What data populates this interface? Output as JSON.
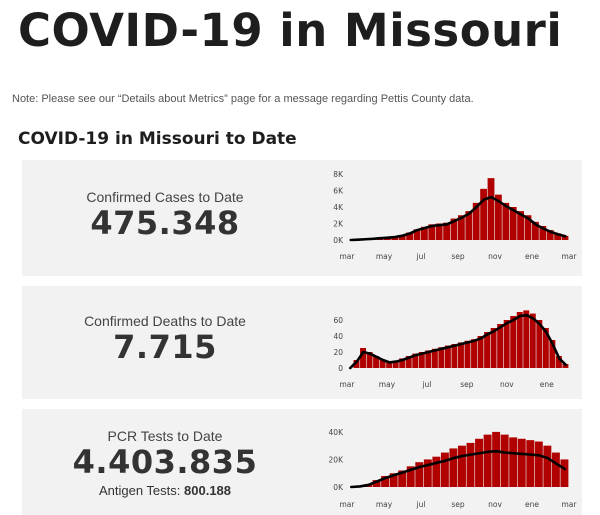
{
  "page": {
    "title": "COVID-19 in Missouri",
    "note": "Note: Please see our “Details about Metrics” page for a message regarding Pettis County data.",
    "section_title": "COVID-19 in Missouri to Date"
  },
  "colors": {
    "bar": "#b00000",
    "line": "#000000",
    "card_bg": "#f2f2f2"
  },
  "cards": [
    {
      "label": "Confirmed Cases to Date",
      "value": "475.348"
    },
    {
      "label": "Confirmed Deaths to Date",
      "value": "7.715"
    },
    {
      "label": "PCR Tests to Date",
      "value": "4.403.835",
      "sub_label": "Antigen Tests:",
      "sub_value": "800.188"
    }
  ],
  "chart_data": [
    {
      "type": "bar",
      "series": [
        {
          "name": "",
          "kind": "bar",
          "values": [
            0,
            50,
            100,
            150,
            250,
            300,
            400,
            600,
            900,
            1300,
            1600,
            1900,
            2000,
            2100,
            2600,
            3000,
            3500,
            4500,
            6200,
            7500,
            5500,
            4500,
            4000,
            3500,
            3000,
            2200,
            1700,
            1200,
            800,
            500
          ]
        },
        {
          "name": "",
          "kind": "line",
          "values": [
            0,
            40,
            90,
            140,
            220,
            280,
            360,
            520,
            800,
            1200,
            1450,
            1700,
            1800,
            1900,
            2300,
            2700,
            3200,
            4000,
            4900,
            5200,
            4700,
            4100,
            3600,
            3100,
            2600,
            1900,
            1400,
            1000,
            700,
            450
          ]
        }
      ],
      "x_ticks": [
        "mar",
        "may",
        "jul",
        "sep",
        "nov",
        "ene",
        "mar"
      ],
      "y_ticks": [
        "0K",
        "2K",
        "4K",
        "6K",
        "8K"
      ],
      "ylim": [
        0,
        8000
      ]
    },
    {
      "type": "bar",
      "series": [
        {
          "name": "",
          "kind": "bar",
          "values": [
            0,
            10,
            25,
            20,
            15,
            10,
            8,
            9,
            12,
            15,
            18,
            20,
            22,
            24,
            26,
            28,
            30,
            32,
            34,
            36,
            40,
            45,
            50,
            55,
            60,
            65,
            70,
            72,
            68,
            60,
            50,
            35,
            15,
            5
          ]
        },
        {
          "name": "",
          "kind": "line",
          "values": [
            0,
            8,
            20,
            18,
            14,
            10,
            7,
            8,
            10,
            13,
            16,
            18,
            20,
            22,
            24,
            26,
            28,
            30,
            32,
            34,
            37,
            42,
            46,
            51,
            56,
            60,
            65,
            66,
            62,
            55,
            45,
            30,
            12,
            4
          ]
        }
      ],
      "x_ticks": [
        "mar",
        "may",
        "jul",
        "sep",
        "nov",
        "ene"
      ],
      "y_ticks": [
        "0",
        "20",
        "40",
        "60"
      ],
      "ylim": [
        0,
        75
      ]
    },
    {
      "type": "bar",
      "series": [
        {
          "name": "",
          "kind": "bar",
          "values": [
            0,
            500,
            2000,
            5000,
            8000,
            10000,
            12000,
            15000,
            18000,
            20000,
            22000,
            25000,
            28000,
            30000,
            32000,
            35000,
            38000,
            40000,
            38000,
            36000,
            35000,
            34000,
            33000,
            30000,
            25000,
            20000
          ]
        },
        {
          "name": "",
          "kind": "line",
          "values": [
            0,
            400,
            1500,
            4000,
            6500,
            8500,
            10500,
            12500,
            14500,
            16000,
            17500,
            19000,
            21000,
            22500,
            23500,
            24500,
            25500,
            26000,
            25000,
            24500,
            24000,
            23500,
            23000,
            21000,
            17000,
            13000
          ]
        }
      ],
      "x_ticks": [
        "mar",
        "may",
        "jul",
        "sep",
        "nov",
        "ene",
        "mar"
      ],
      "y_ticks": [
        "0K",
        "20K",
        "40K"
      ],
      "ylim": [
        0,
        45000
      ]
    }
  ]
}
